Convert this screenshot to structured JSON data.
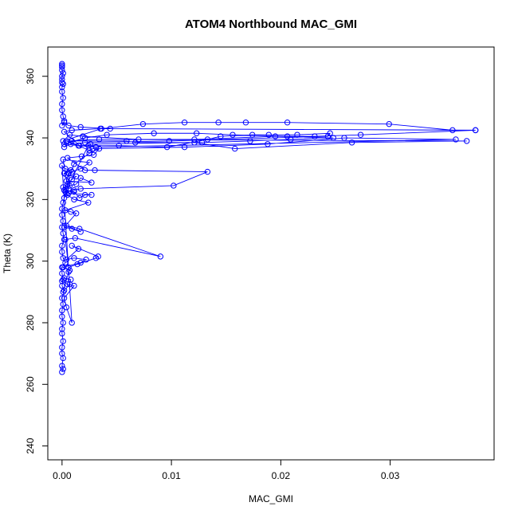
{
  "chart_data": {
    "type": "line",
    "title": "ATOM4 Northbound MAC_GMI",
    "xlabel": "MAC_GMI",
    "ylabel": "Theta (K)",
    "xlim": [
      -0.0013,
      0.0395
    ],
    "ylim": [
      235.5,
      369.5
    ],
    "xticks": [
      0.0,
      0.01,
      0.02,
      0.03
    ],
    "xtick_labels": [
      "0.00",
      "0.01",
      "0.02",
      "0.03"
    ],
    "yticks": [
      240,
      260,
      280,
      300,
      320,
      340,
      360
    ],
    "ytick_labels": [
      "240",
      "260",
      "280",
      "300",
      "320",
      "340",
      "360"
    ],
    "grid": false,
    "series": [
      {
        "color": "#0000ff",
        "marker": "open-circle",
        "x": [
          0.0,
          0.0001,
          0.0,
          0.0001,
          0.0,
          0.0,
          0.0001,
          0.0,
          0.0,
          0.0001,
          0.0,
          0.0,
          0.0001,
          0.0,
          0.0002,
          0.0,
          0.0001,
          0.0,
          0.0,
          0.0003,
          0.0001,
          0.0,
          0.0,
          0.0002,
          0.0001,
          0.0,
          0.0001,
          0.0,
          0.0,
          0.0001,
          0.0002,
          0.0004,
          0.0006,
          0.0007,
          0.0005,
          0.0009,
          0.0013,
          0.0004,
          0.0002,
          0.0008,
          0.0003,
          0.0,
          0.0009,
          0.0004,
          0.0002,
          0.0011,
          0.0005,
          0.0,
          0.0002,
          0.0008,
          0.0007,
          0.0001,
          0.0006,
          0.0007,
          0.0001,
          0.0017,
          0.0022,
          0.0011,
          0.0004,
          0.0015,
          0.0009,
          0.0033,
          0.0031,
          0.0014,
          0.0006,
          0.0003,
          0.0012,
          0.009,
          0.0016,
          0.0004,
          0.0017,
          0.0009,
          0.0002,
          0.0013,
          0.0008,
          0.0003,
          0.0024,
          0.0011,
          0.0005,
          0.0001,
          0.0013,
          0.0017,
          0.0027,
          0.0004,
          0.0006,
          0.0009,
          0.0017,
          0.0025,
          0.0001,
          0.0006,
          0.0027,
          0.0021,
          0.0016,
          0.0011,
          0.0002,
          0.0011,
          0.0025,
          0.0034,
          0.0029,
          0.0018,
          0.0005,
          0.0021,
          0.003,
          0.0133,
          0.0102,
          0.0017,
          0.0011,
          0.0003,
          0.0024,
          0.0026,
          0.0121,
          0.0158,
          0.0265,
          0.037,
          0.0034,
          0.0004,
          0.0025,
          0.0028,
          0.0112,
          0.0188,
          0.0258,
          0.036,
          0.0031,
          0.0015,
          0.0002,
          0.0021,
          0.0041,
          0.0084,
          0.0123,
          0.0156,
          0.0206,
          0.0231,
          0.0273,
          0.0378,
          0.0035,
          0.0009,
          0.0002,
          0.0016,
          0.0052,
          0.0096,
          0.0133,
          0.0145,
          0.0174,
          0.0189,
          0.0215,
          0.0245,
          0.0243,
          0.0098,
          0.0021,
          0.0008,
          0.0002,
          0.0009,
          0.0059,
          0.0067,
          0.0128,
          0.0172,
          0.0209,
          0.0248,
          0.0195,
          0.0121,
          0.007,
          0.0019,
          0.0007,
          0.0001,
          0.0036,
          0.0074,
          0.0112,
          0.0143,
          0.0168,
          0.0206,
          0.0299,
          0.0357,
          0.0378,
          0.0044,
          0.0017,
          0.0006,
          0.0002,
          0.0,
          0.0002,
          0.0001,
          0.0,
          0.0,
          0.0001,
          0.0,
          0.0,
          0.0001,
          0.0,
          0.0,
          0.0,
          0.0001,
          0.0,
          0.0,
          0.0,
          0.0
        ],
        "y": [
          264.0,
          265.0,
          266.0,
          268.5,
          270.0,
          272.0,
          274.0,
          276.5,
          278.0,
          280.0,
          282.0,
          284.0,
          286.0,
          288.0,
          290.5,
          292.0,
          294.0,
          296.0,
          298.0,
          299.5,
          301.0,
          303.0,
          305.0,
          307.0,
          309.0,
          311.0,
          313.0,
          315.0,
          317.0,
          319.0,
          320.5,
          322.0,
          323.5,
          324.5,
          325.0,
          326.5,
          327.5,
          328.0,
          328.5,
          329.5,
          330.0,
          331.0,
          280.0,
          285.0,
          288.0,
          292.0,
          292.5,
          293.5,
          294.5,
          294.0,
          292.5,
          290.0,
          296.5,
          297.0,
          298.0,
          299.5,
          300.5,
          301.0,
          300.5,
          304.0,
          305.0,
          301.5,
          301.0,
          299.0,
          298.0,
          307.0,
          307.5,
          301.5,
          310.5,
          311.5,
          309.5,
          310.5,
          311.0,
          315.5,
          316.0,
          316.5,
          319.0,
          320.0,
          321.5,
          324.0,
          325.0,
          327.0,
          325.5,
          326.0,
          328.5,
          329.0,
          330.0,
          332.0,
          333.0,
          322.0,
          321.5,
          321.5,
          320.5,
          322.5,
          323.0,
          331.5,
          335.0,
          336.5,
          334.5,
          334.0,
          333.5,
          329.5,
          329.5,
          329.0,
          324.5,
          323.5,
          323.0,
          322.5,
          337.5,
          338.0,
          338.5,
          336.5,
          338.5,
          339.0,
          339.5,
          339.0,
          336.0,
          336.5,
          337.0,
          338.0,
          340.0,
          339.5,
          337.0,
          337.5,
          338.0,
          340.0,
          341.0,
          341.5,
          341.5,
          341.0,
          340.5,
          340.5,
          341.0,
          342.5,
          343.0,
          342.5,
          342.0,
          337.5,
          337.5,
          337.0,
          339.5,
          340.5,
          341.0,
          341.0,
          341.0,
          341.5,
          340.5,
          339.0,
          338.5,
          338.0,
          337.0,
          339.0,
          339.0,
          338.5,
          338.5,
          339.0,
          339.5,
          340.0,
          340.5,
          339.5,
          339.5,
          340.5,
          341.0,
          339.0,
          343.0,
          344.5,
          345.0,
          345.0,
          345.0,
          345.0,
          344.5,
          342.5,
          342.5,
          343.0,
          343.5,
          344.0,
          345.0,
          344.0,
          345.5,
          347.0,
          349.0,
          351.0,
          353.0,
          355.0,
          356.5,
          357.5,
          358.0,
          359.0,
          360.0,
          361.0,
          362.0,
          363.0,
          363.5,
          364.0
        ]
      }
    ]
  }
}
